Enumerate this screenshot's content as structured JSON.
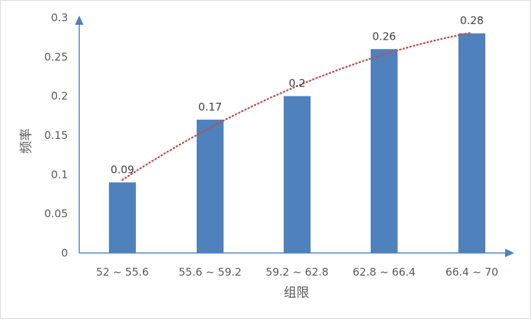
{
  "chart_data": {
    "type": "bar",
    "title": "",
    "xlabel": "组限",
    "ylabel": "频率",
    "categories": [
      "52 ~ 55.6",
      "55.6 ~ 59.2",
      "59.2 ~ 62.8",
      "62.8 ~ 66.4",
      "66.4 ~ 70"
    ],
    "values": [
      0.09,
      0.17,
      0.2,
      0.26,
      0.28
    ],
    "data_labels": [
      "0.09",
      "0.17",
      "0.2",
      "0.26",
      "0.28"
    ],
    "yticks": [
      "0",
      "0.05",
      "0.1",
      "0.15",
      "0.2",
      "0.25",
      "0.3"
    ],
    "ylim": [
      0,
      0.3
    ],
    "grid": false,
    "legend": "none",
    "trendline": {
      "type": "polynomial",
      "style": "dotted"
    },
    "colors": {
      "bar": "#4f81bd",
      "trendline": "#c0504d",
      "axis": "#4f81bd",
      "text": "#595959"
    }
  }
}
